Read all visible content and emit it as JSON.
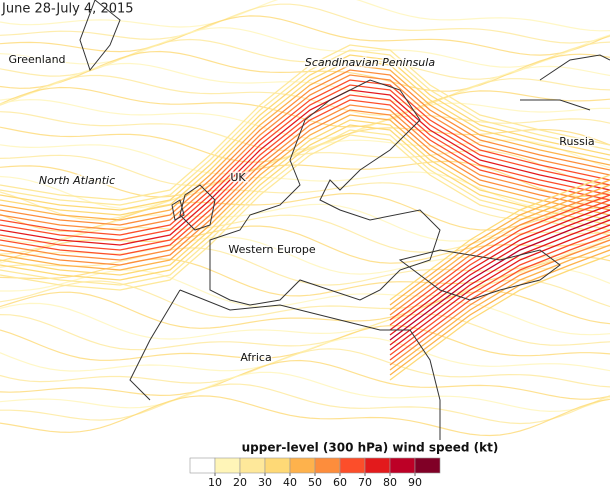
{
  "title": "June 28-July 4, 2015",
  "map_labels": [
    "Greenland",
    "Scandinavian Peninsula",
    "North Atlantic",
    "UK",
    "Russia",
    "Western Europe",
    "Africa"
  ],
  "legend": {
    "title": "upper-level (300 hPa) wind speed (kt)",
    "ticks": [
      10,
      20,
      30,
      40,
      50,
      60,
      70,
      80,
      90
    ],
    "colors": [
      "#ffffff",
      "#fff5b8",
      "#fee89a",
      "#fed976",
      "#feb24c",
      "#fd8d3c",
      "#fc4e2a",
      "#e31a1c",
      "#bd0026",
      "#800026"
    ]
  }
}
